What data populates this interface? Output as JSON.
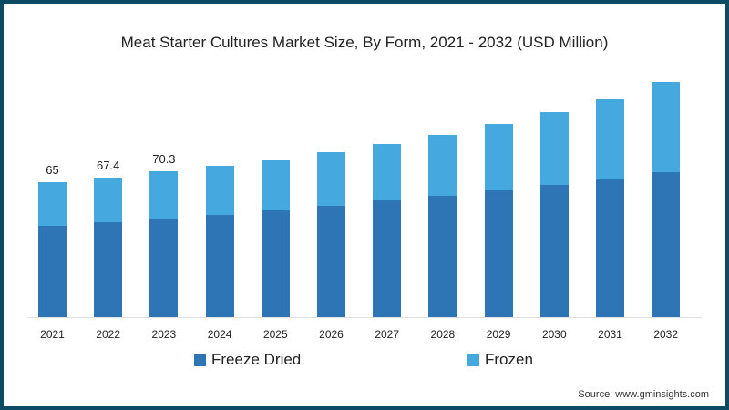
{
  "title": "Meat Starter Cultures Market Size, By Form, 2021 - 2032 (USD Million)",
  "source": "Source: www.gminsights.com",
  "colors": {
    "freeze_dried": "#2e75b6",
    "frozen": "#45a8de",
    "frame": "#0d4a63"
  },
  "legend": [
    {
      "label": "Freeze Dried",
      "color": "#2e75b6"
    },
    {
      "label": "Frozen",
      "color": "#45a8de"
    }
  ],
  "chart_data": {
    "type": "bar",
    "stacked": true,
    "title": "Meat Starter Cultures Market Size, By Form, 2021 - 2032 (USD Million)",
    "xlabel": "",
    "ylabel": "USD Million",
    "categories": [
      "2021",
      "2022",
      "2023",
      "2024",
      "2025",
      "2026",
      "2027",
      "2028",
      "2029",
      "2030",
      "2031",
      "2032"
    ],
    "series": [
      {
        "name": "Freeze Dried",
        "values": [
          43.9,
          45.7,
          47.4,
          49.2,
          51.4,
          53.6,
          56.2,
          58.4,
          61.1,
          63.7,
          66.4,
          69.8
        ]
      },
      {
        "name": "Frozen",
        "values": [
          21.1,
          21.7,
          22.9,
          23.7,
          24.2,
          25.9,
          27.3,
          29.5,
          32.0,
          35.1,
          38.6,
          43.5
        ]
      }
    ],
    "totals": [
      65,
      67.4,
      70.3,
      72.9,
      75.6,
      79.5,
      83.5,
      87.9,
      93.1,
      98.8,
      105.0,
      113.3
    ],
    "data_labels": {
      "2021": "65",
      "2022": "67.4",
      "2023": "70.3"
    },
    "ylim": [
      0,
      130
    ],
    "grid": false,
    "legend_position": "bottom"
  }
}
